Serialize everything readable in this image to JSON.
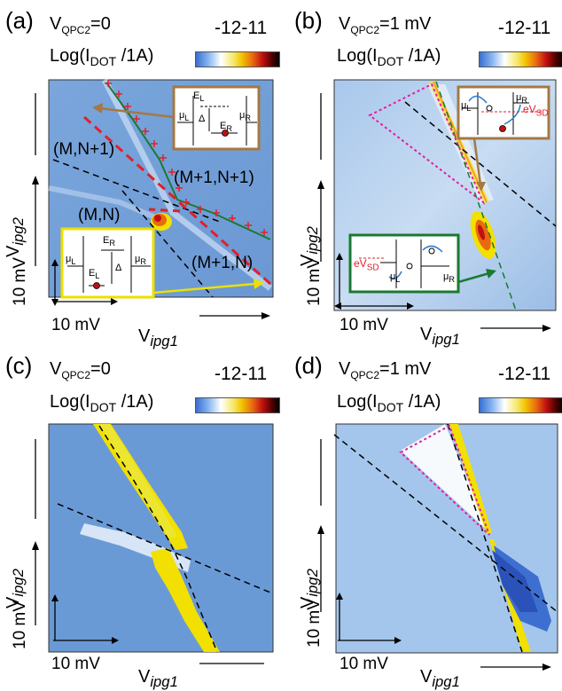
{
  "panels": [
    {
      "id": "a",
      "label": "(a)",
      "vqpc": "=0",
      "log_label": "Log(I",
      "log_sub": "DOT",
      "log_tail": " /1A)",
      "ticks": "-12-11"
    },
    {
      "id": "b",
      "label": "(b)",
      "vqpc": "=1 mV",
      "log_label": "Log(I",
      "log_sub": "DOT",
      "log_tail": " /1A)",
      "ticks": "-12-11"
    },
    {
      "id": "c",
      "label": "(c)",
      "vqpc": "=0",
      "log_label": "Log(I",
      "log_sub": "DOT",
      "log_tail": " /1A)",
      "ticks": "-12-11"
    },
    {
      "id": "d",
      "label": "(d)",
      "vqpc": "=1 mV",
      "log_label": "Log(I",
      "log_sub": "DOT",
      "log_tail": " /1A)",
      "ticks": "-12-11"
    }
  ],
  "vqpc_prefix": "V",
  "vqpc_sub": "QPC2",
  "axis_x": "ipg1",
  "axis_y": "ipg2",
  "scale_label": "10 mV",
  "charge_states": {
    "mn": "(M,N)",
    "mn1": "(M,N+1)",
    "m1n1": "(M+1,N+1)",
    "m1n": "(M+1,N)"
  },
  "inset_labels": {
    "el": "E",
    "el_sub": "L",
    "er": "E",
    "er_sub": "R",
    "mu": "μ",
    "mul": "L",
    "mur": "R",
    "delta": "Δ",
    "evsd": "eV",
    "evsd_sub": "SD"
  },
  "colors": {
    "map_bg": "#6a9ad6",
    "yellow": "#f2e000",
    "red": "#c20f10",
    "magenta": "#e020a0",
    "brown": "#a57844",
    "green": "#1a7a30"
  },
  "chart_data": [
    {
      "panel": "a",
      "type": "heatmap",
      "colorbar_ticks": [
        -12,
        -11
      ],
      "colorbar_label": "Log(I DOT /1A)",
      "xlabel": "Vipg1",
      "ylabel": "Vipg2",
      "scale_bar": "10 mV"
    },
    {
      "panel": "b",
      "type": "heatmap",
      "colorbar_ticks": [
        -12,
        -11
      ],
      "colorbar_label": "Log(I DOT /1A)",
      "xlabel": "Vipg1",
      "ylabel": "Vipg2",
      "scale_bar": "10 mV"
    },
    {
      "panel": "c",
      "type": "heatmap",
      "colorbar_ticks": [
        -12,
        -11
      ],
      "colorbar_label": "Log(I DOT /1A)",
      "xlabel": "Vipg1",
      "ylabel": "Vipg2",
      "scale_bar": "10 mV"
    },
    {
      "panel": "d",
      "type": "heatmap",
      "colorbar_ticks": [
        -12,
        -11
      ],
      "colorbar_label": "Log(I DOT /1A)",
      "xlabel": "Vipg1",
      "ylabel": "Vipg2",
      "scale_bar": "10 mV"
    }
  ]
}
